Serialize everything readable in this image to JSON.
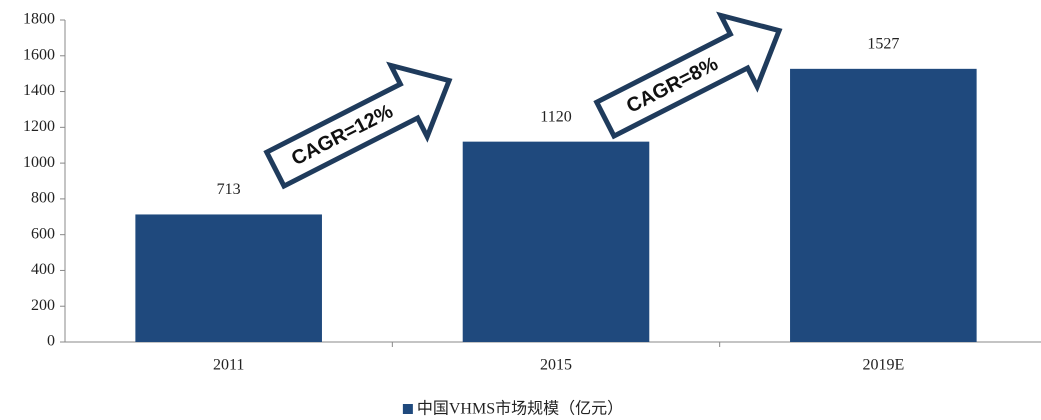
{
  "chart_data": {
    "type": "bar",
    "categories": [
      "2011",
      "2015",
      "2019E"
    ],
    "series": [
      {
        "name": "中国VHMS市场规模（亿元）",
        "color": "#1f497d",
        "values": [
          713,
          1120,
          1527
        ]
      }
    ],
    "ylim": [
      0,
      1800
    ],
    "yticks": [
      0,
      200,
      400,
      600,
      800,
      1000,
      1200,
      1400,
      1600,
      1800
    ],
    "annotations": [
      "CAGR=12%",
      "CAGR=8%"
    ],
    "legend": "bottom"
  }
}
